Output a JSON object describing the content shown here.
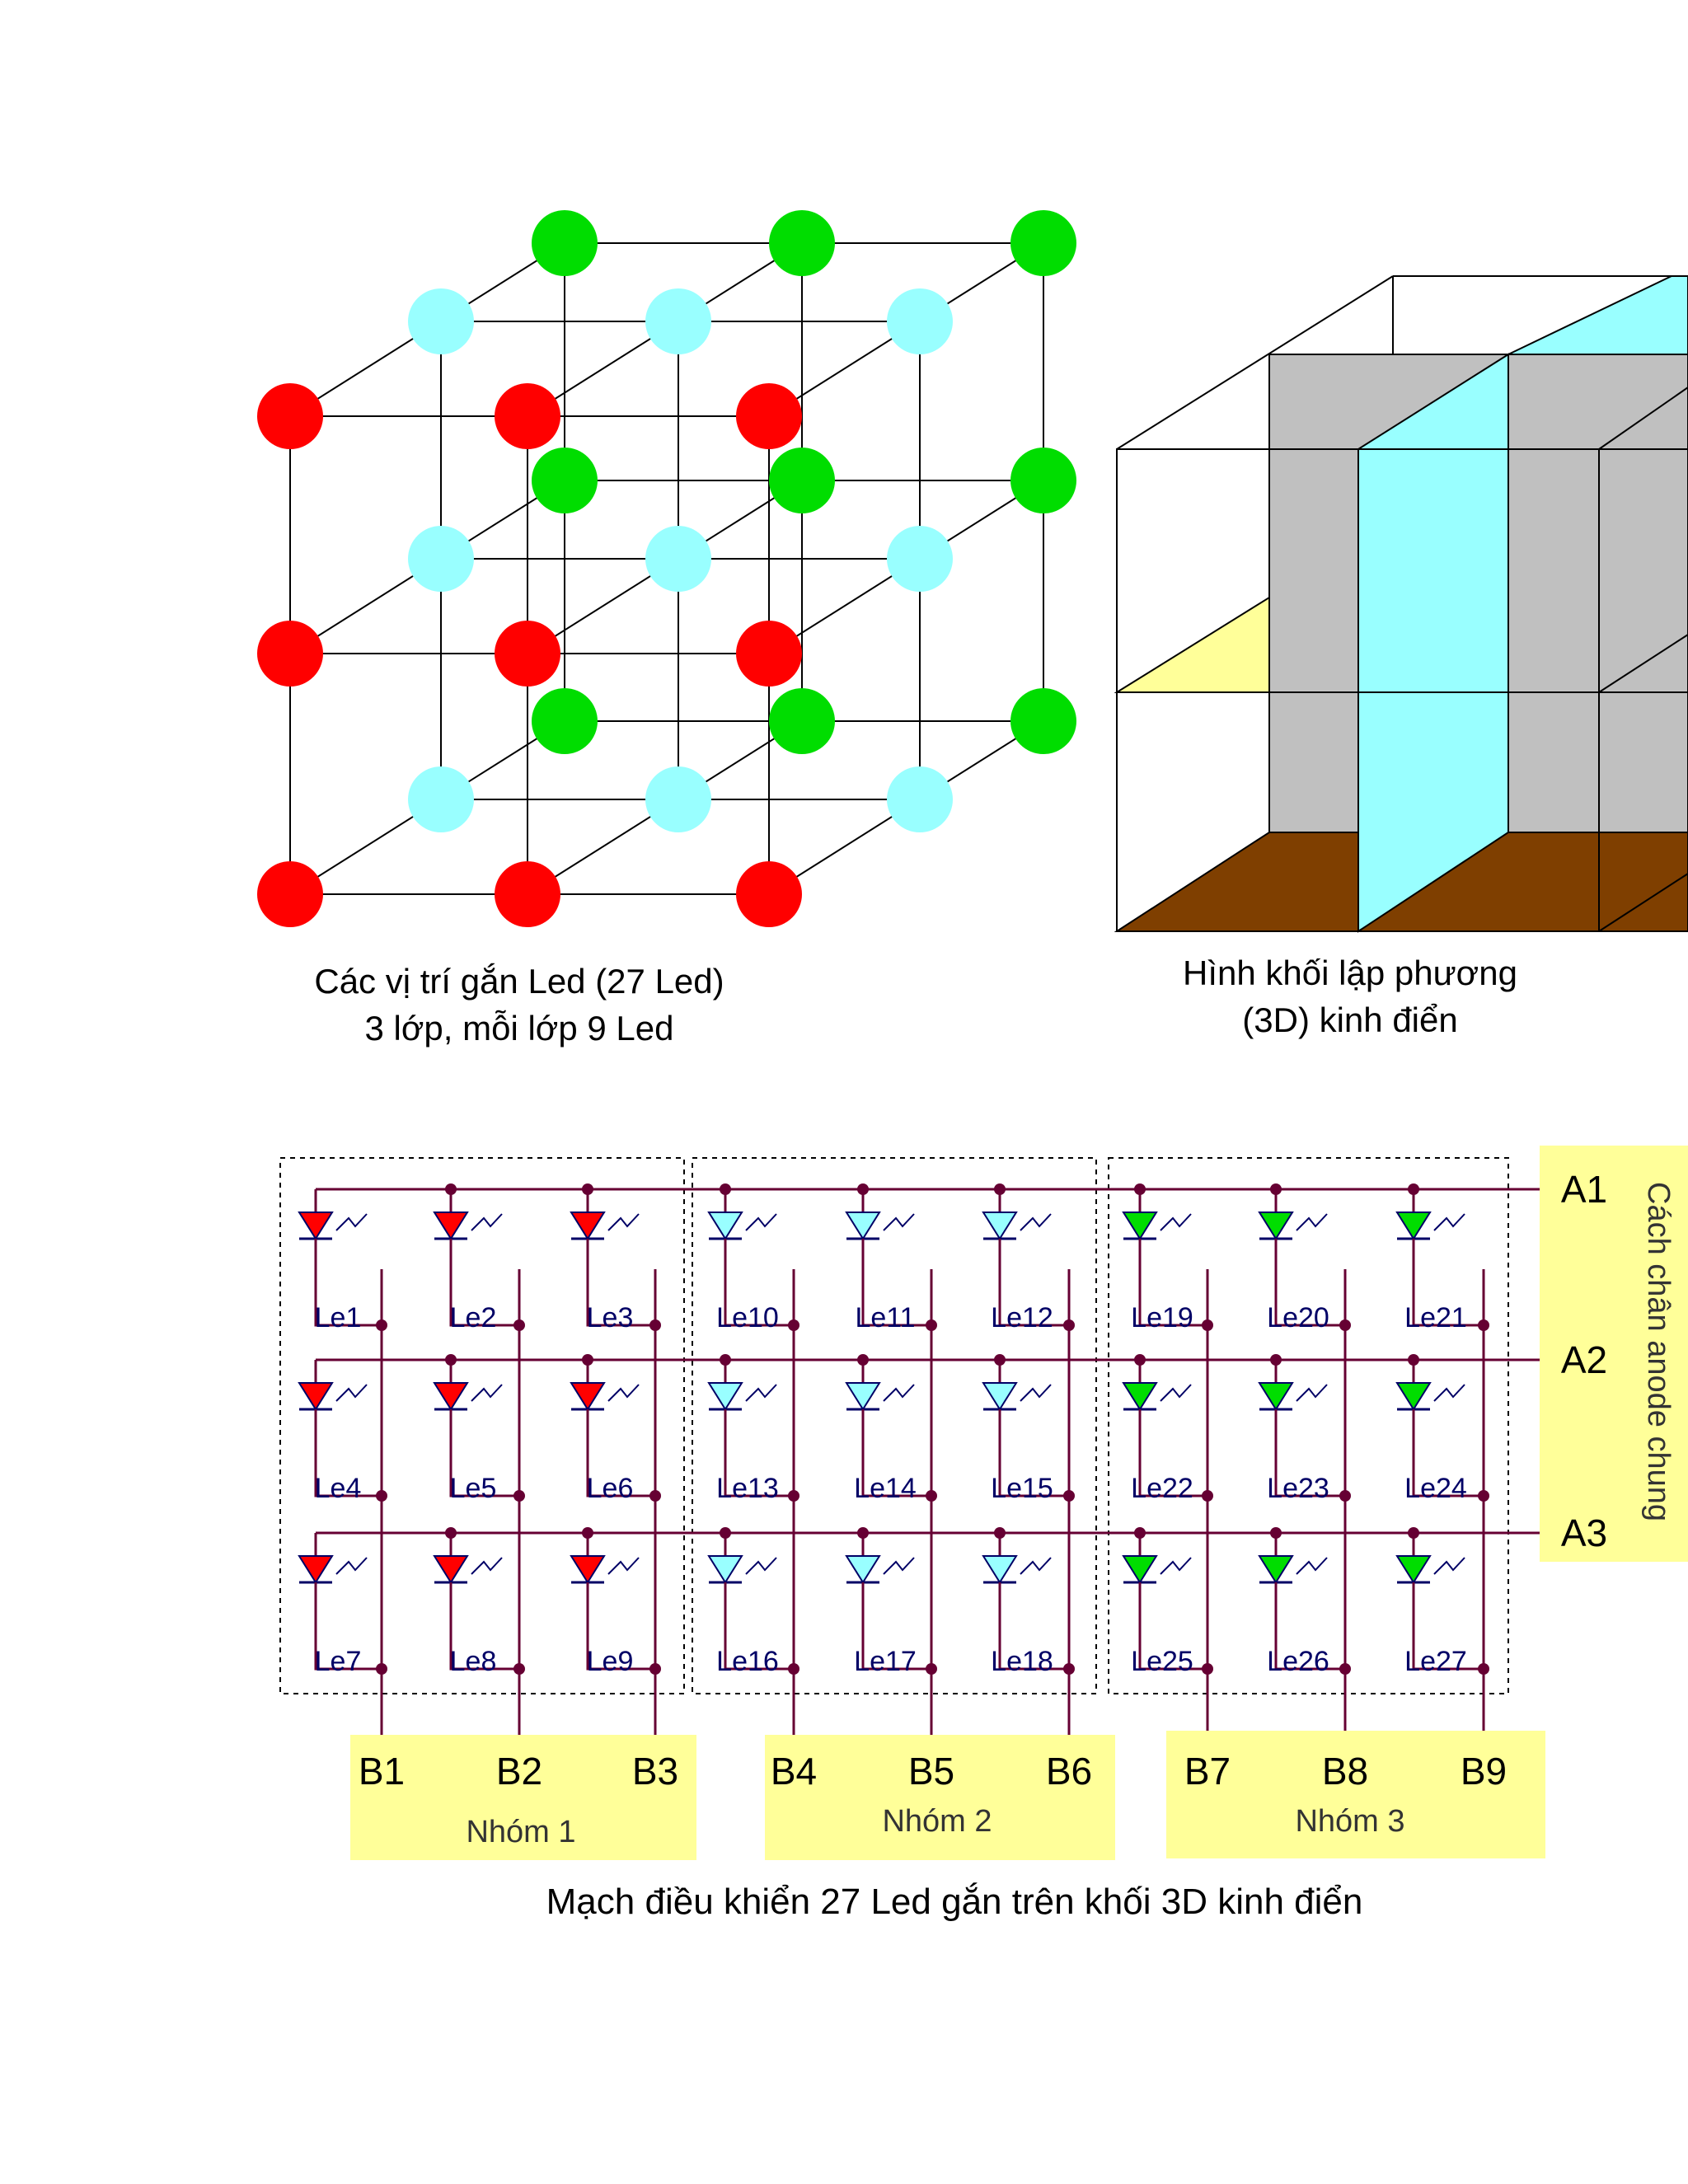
{
  "cube_figure": {
    "caption_line1": "Các vị trí gắn Led (27 Led)",
    "caption_line2": "3 lớp, mỗi lớp 9 Led",
    "colors": {
      "front_layer": "#ff0000",
      "middle_layer": "#99ffff",
      "back_layer": "#00dd00",
      "edge": "#000000"
    }
  },
  "solid_figure": {
    "caption_line1": "Hình khối lập phương",
    "caption_line2": "(3D) kinh điển",
    "colors": {
      "panel_gray": "#c0c0c0",
      "panel_cyan": "#99ffff",
      "floor_brown": "#7f3f00",
      "yellow_sheet": "#ffff99"
    }
  },
  "circuit": {
    "anode_labels": [
      "A1",
      "A2",
      "A3"
    ],
    "anode_caption": "Cách chân anode chung",
    "cathode_labels": [
      "B1",
      "B2",
      "B3",
      "B4",
      "B5",
      "B6",
      "B7",
      "B8",
      "B9"
    ],
    "group_labels": [
      "Nhóm 1",
      "Nhóm 2",
      "Nhóm 3"
    ],
    "led_labels": [
      [
        "Le1",
        "Le2",
        "Le3",
        "Le10",
        "Le11",
        "Le12",
        "Le19",
        "Le20",
        "Le21"
      ],
      [
        "Le4",
        "Le5",
        "Le6",
        "Le13",
        "Le14",
        "Le15",
        "Le22",
        "Le23",
        "Le24"
      ],
      [
        "Le7",
        "Le8",
        "Le9",
        "Le16",
        "Le17",
        "Le18",
        "Le25",
        "Le26",
        "Le27"
      ]
    ],
    "group_led_colors": [
      "#ff0000",
      "#99ffff",
      "#00dd00"
    ],
    "wire_color": "#660033",
    "label_panel_color": "#ffff99",
    "caption": "Mạch điều khiển 27 Led gắn trên khối 3D kinh điển"
  }
}
